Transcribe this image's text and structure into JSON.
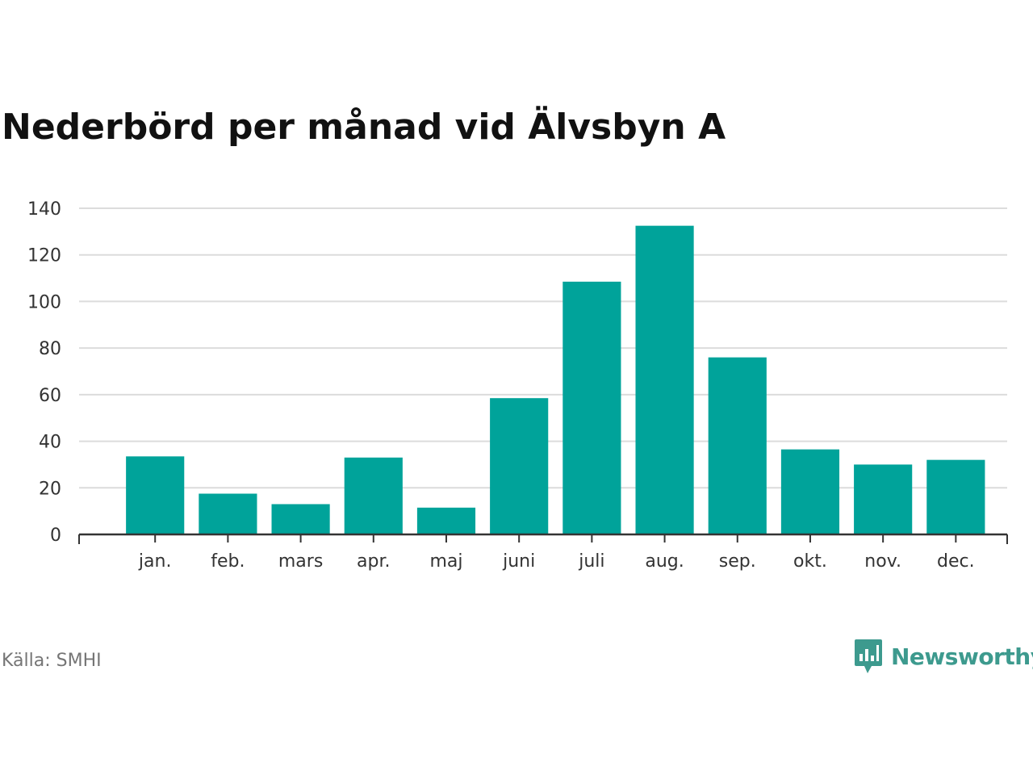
{
  "title": "Nederbörd per månad vid Älvsbyn A",
  "source": "Källa: SMHI",
  "brand": {
    "name": "Newsworthy",
    "icon": "newsworthy-logo-icon",
    "color": "#3d9a8e"
  },
  "colors": {
    "bar": "#00a39a",
    "grid": "#dcdcdc",
    "axis": "#333333",
    "text": "#333333"
  },
  "chart_data": {
    "type": "bar",
    "title": "Nederbörd per månad vid Älvsbyn A",
    "xlabel": "",
    "ylabel": "",
    "categories": [
      "jan.",
      "feb.",
      "mars",
      "apr.",
      "maj",
      "juni",
      "juli",
      "aug.",
      "sep.",
      "okt.",
      "nov.",
      "dec."
    ],
    "values": [
      33.5,
      17.5,
      13,
      33,
      11.5,
      58.5,
      108.5,
      132.5,
      76,
      36.5,
      30,
      32
    ],
    "ylim": [
      0,
      140
    ],
    "yticks": [
      0,
      20,
      40,
      60,
      80,
      100,
      120,
      140
    ],
    "grid": true,
    "legend": "none"
  }
}
